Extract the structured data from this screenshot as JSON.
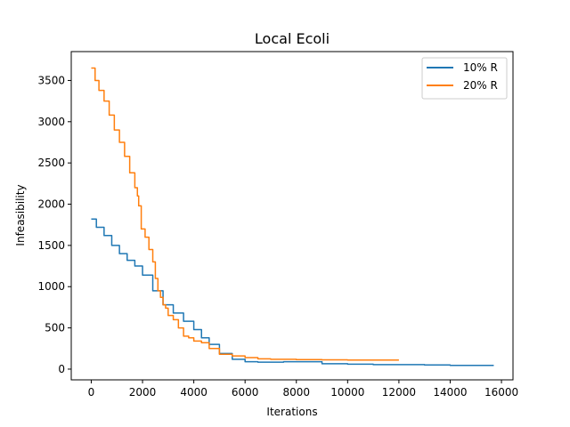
{
  "chart_data": {
    "type": "line",
    "title": "Local Ecoli",
    "xlabel": "Iterations",
    "ylabel": "Infeasibility",
    "xlim": [
      -780,
      16450
    ],
    "ylim": [
      -130,
      3850
    ],
    "xticks": [
      0,
      2000,
      4000,
      6000,
      8000,
      10000,
      12000,
      14000,
      16000
    ],
    "xtick_labels": [
      "0",
      "2000",
      "4000",
      "6000",
      "8000",
      "10000",
      "12000",
      "14000",
      "16000"
    ],
    "yticks": [
      0,
      500,
      1000,
      1500,
      2000,
      2500,
      3000,
      3500
    ],
    "ytick_labels": [
      "0",
      "500",
      "1000",
      "1500",
      "2000",
      "2500",
      "3000",
      "3500"
    ],
    "grid": false,
    "legend_position": "top-right",
    "series": [
      {
        "name": "10% R",
        "color": "#1f77b4",
        "x": [
          0,
          200,
          500,
          800,
          1100,
          1400,
          1700,
          2000,
          2400,
          2800,
          3200,
          3600,
          4000,
          4300,
          4600,
          5000,
          5500,
          6000,
          6500,
          7000,
          7500,
          8000,
          9000,
          10000,
          11000,
          12000,
          13000,
          14000,
          15000,
          15700
        ],
        "y": [
          1820,
          1720,
          1620,
          1500,
          1400,
          1320,
          1250,
          1140,
          950,
          780,
          680,
          580,
          480,
          380,
          300,
          190,
          120,
          90,
          85,
          85,
          90,
          90,
          65,
          60,
          55,
          55,
          50,
          45,
          45,
          45
        ]
      },
      {
        "name": "20% R",
        "color": "#ff7f0e",
        "x": [
          0,
          150,
          300,
          500,
          700,
          900,
          1100,
          1300,
          1500,
          1700,
          1800,
          1850,
          1950,
          2100,
          2250,
          2400,
          2500,
          2600,
          2700,
          2800,
          2900,
          3000,
          3200,
          3400,
          3600,
          3800,
          4000,
          4300,
          4600,
          5000,
          5500,
          6000,
          6500,
          7000,
          8000,
          9000,
          10000,
          11000,
          12000
        ],
        "y": [
          3650,
          3500,
          3380,
          3250,
          3080,
          2900,
          2750,
          2580,
          2380,
          2200,
          2100,
          1980,
          1700,
          1600,
          1450,
          1300,
          1100,
          950,
          870,
          780,
          740,
          650,
          600,
          500,
          400,
          380,
          340,
          320,
          250,
          180,
          160,
          140,
          125,
          120,
          115,
          112,
          110,
          110,
          110
        ]
      }
    ]
  }
}
